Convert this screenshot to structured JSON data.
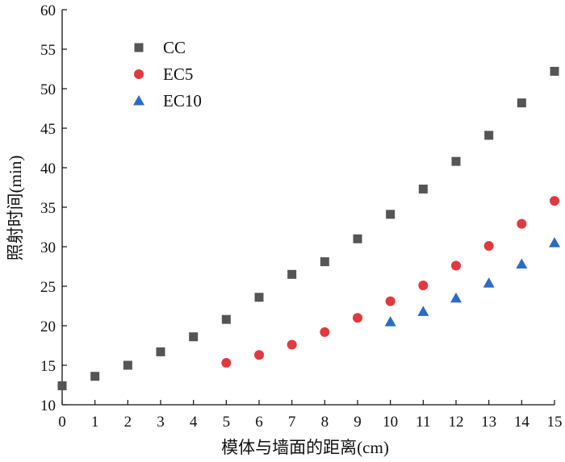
{
  "chart_data": {
    "type": "scatter",
    "xlabel": "模体与墙面的距离(cm)",
    "ylabel": "照射时间(min)",
    "xlim": [
      0,
      15
    ],
    "ylim": [
      10,
      60
    ],
    "xticks": [
      0,
      1,
      2,
      3,
      4,
      5,
      6,
      7,
      8,
      9,
      10,
      11,
      12,
      13,
      14,
      15
    ],
    "yticks": [
      10,
      15,
      20,
      25,
      30,
      35,
      40,
      45,
      50,
      55,
      60
    ],
    "grid": false,
    "legend_position": "top-left",
    "series": [
      {
        "name": "CC",
        "marker": "square",
        "color": "#555555",
        "x": [
          0,
          1,
          2,
          3,
          4,
          5,
          6,
          7,
          8,
          9,
          10,
          11,
          12,
          13,
          14,
          15
        ],
        "y": [
          12.4,
          13.6,
          15.0,
          16.7,
          18.6,
          20.8,
          23.6,
          26.5,
          28.1,
          31.0,
          34.1,
          37.3,
          40.8,
          44.1,
          48.2,
          52.2
        ]
      },
      {
        "name": "EC5",
        "marker": "circle",
        "color": "#e0393e",
        "x": [
          5,
          6,
          7,
          8,
          9,
          10,
          11,
          12,
          13,
          14,
          15
        ],
        "y": [
          15.3,
          16.3,
          17.6,
          19.2,
          21.0,
          23.1,
          25.1,
          27.6,
          30.1,
          32.9,
          35.8
        ]
      },
      {
        "name": "EC10",
        "marker": "triangle",
        "color": "#2b6cc4",
        "x": [
          10,
          11,
          12,
          13,
          14,
          15
        ],
        "y": [
          20.5,
          21.8,
          23.5,
          25.4,
          27.8,
          30.5
        ]
      }
    ]
  }
}
